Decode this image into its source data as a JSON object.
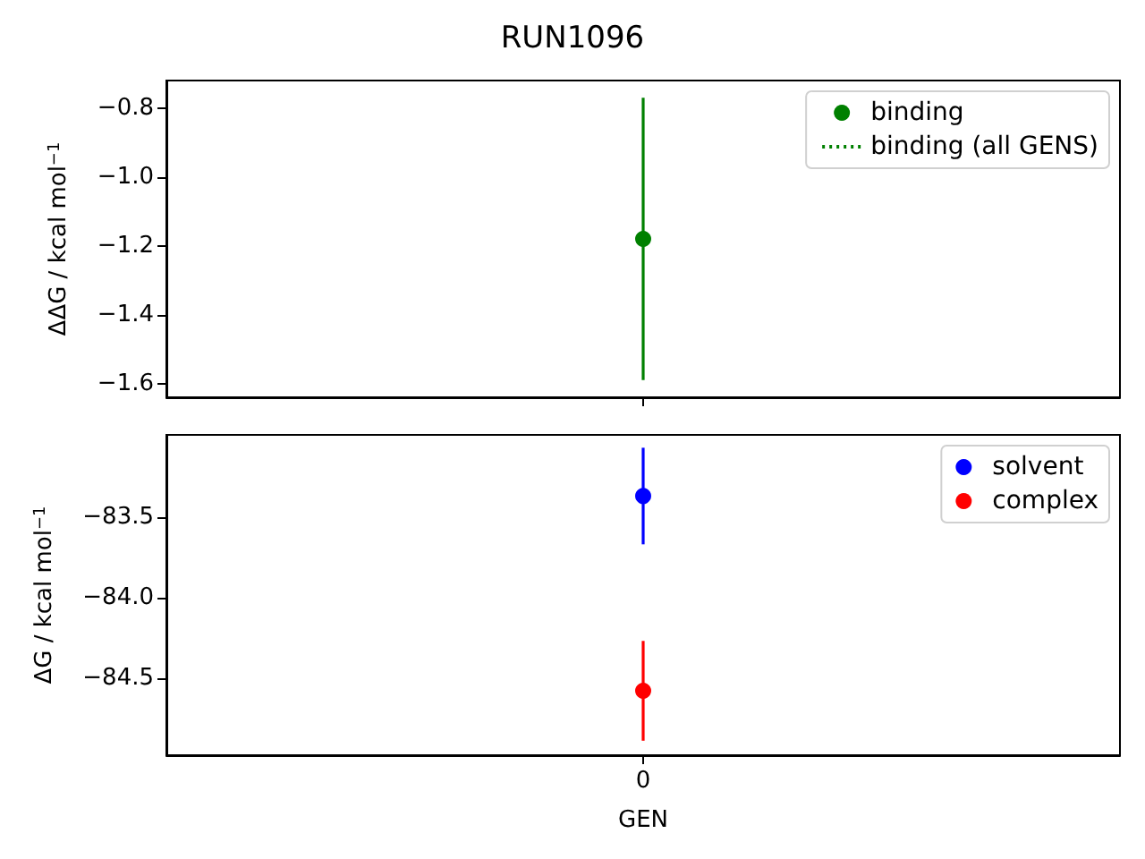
{
  "chart_data": [
    {
      "type": "scatter",
      "title": "RUN1096",
      "ylabel": "ΔΔG / kcal mol$^{−1}$",
      "categories": [
        null
      ],
      "series": [
        {
          "name": "binding",
          "color": "#008000",
          "values": [
            -1.18
          ],
          "errors": [
            0.41
          ]
        },
        {
          "name": "binding (all GENS)",
          "type": "line",
          "color": "#008000",
          "values": [
            null
          ],
          "line_style": "dotted",
          "marker": "none"
        }
      ],
      "ylim": [
        -1.64,
        -0.72
      ],
      "yticks": [
        {
          "value": -1.6,
          "label": "−1.6"
        },
        {
          "value": -1.4,
          "label": "−1.4"
        },
        {
          "value": -1.2,
          "label": "−1.2"
        },
        {
          "value": -1.0,
          "label": "−1.0"
        },
        {
          "value": -0.8,
          "label": "−0.8"
        }
      ],
      "legend": "top right",
      "marker": "circle"
    },
    {
      "type": "scatter",
      "xlabel": "GEN",
      "ylabel": "ΔG / kcal mol$^{−1}$",
      "categories": [
        "0"
      ],
      "series": [
        {
          "name": "solvent",
          "color": "#0000ff",
          "values": [
            -83.37
          ],
          "errors": [
            0.3
          ]
        },
        {
          "name": "complex",
          "color": "#ff0000",
          "values": [
            -84.58
          ],
          "errors": [
            0.31
          ]
        }
      ],
      "ylim": [
        -84.98,
        -82.99
      ],
      "yticks": [
        {
          "value": -84.5,
          "label": "−84.5"
        },
        {
          "value": -84.0,
          "label": "−84.0"
        },
        {
          "value": -83.5,
          "label": "−83.5"
        }
      ],
      "legend": "top right",
      "marker": "circle"
    }
  ]
}
